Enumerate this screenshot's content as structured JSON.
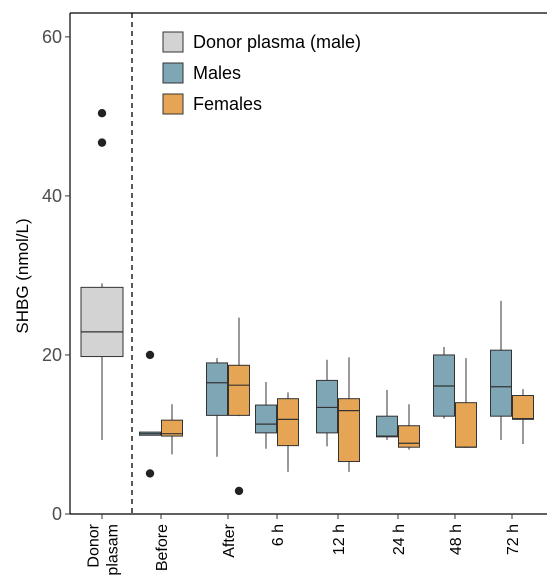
{
  "chart_data": {
    "type": "box",
    "ylabel": "SHBG (nmol/L)",
    "ylim": [
      0,
      63
    ],
    "yticks": [
      0,
      20,
      40,
      60
    ],
    "categories": [
      "Donor\nplasam",
      "Before",
      "After",
      "6 h",
      "12 h",
      "24 h",
      "48 h",
      "72 h"
    ],
    "colors": {
      "donor": "#d3d3d3",
      "males": "#7fa6b5",
      "females": "#e6a555"
    },
    "legend": {
      "position": "top-left",
      "entries": [
        {
          "label": "Donor plasma (male)",
          "color": "#d3d3d3"
        },
        {
          "label": "Males",
          "color": "#7fa6b5"
        },
        {
          "label": "Females",
          "color": "#e6a555"
        }
      ]
    },
    "series": [
      {
        "name": "Donor plasma (male)",
        "group": "donor",
        "boxes": [
          {
            "category": 0,
            "whisker_low": 9.3,
            "q1": 19.8,
            "median": 22.9,
            "q3": 28.5,
            "whisker_high": 29.0,
            "outliers": [
              46.7,
              50.4
            ]
          }
        ]
      },
      {
        "name": "Males",
        "group": "males",
        "boxes": [
          {
            "category": 1,
            "whisker_low": 9.9,
            "q1": 9.9,
            "median": 10.1,
            "q3": 10.3,
            "whisker_high": 10.3,
            "outliers": [
              5.1,
              20.0
            ]
          },
          {
            "category": 2,
            "whisker_low": 7.2,
            "q1": 12.4,
            "median": 16.5,
            "q3": 19.0,
            "whisker_high": 19.6,
            "outliers": []
          },
          {
            "category": 3,
            "whisker_low": 8.2,
            "q1": 10.2,
            "median": 11.3,
            "q3": 13.7,
            "whisker_high": 16.6,
            "outliers": []
          },
          {
            "category": 4,
            "whisker_low": 8.5,
            "q1": 10.2,
            "median": 13.4,
            "q3": 16.8,
            "whisker_high": 19.4,
            "outliers": []
          },
          {
            "category": 5,
            "whisker_low": 9.3,
            "q1": 9.7,
            "median": 9.8,
            "q3": 12.3,
            "whisker_high": 15.6,
            "outliers": []
          },
          {
            "category": 6,
            "whisker_low": 12.0,
            "q1": 12.3,
            "median": 16.1,
            "q3": 20.0,
            "whisker_high": 21.0,
            "outliers": []
          },
          {
            "category": 7,
            "whisker_low": 9.3,
            "q1": 12.3,
            "median": 16.0,
            "q3": 20.6,
            "whisker_high": 26.8,
            "outliers": []
          }
        ]
      },
      {
        "name": "Females",
        "group": "females",
        "boxes": [
          {
            "category": 1,
            "whisker_low": 7.5,
            "q1": 9.8,
            "median": 10.1,
            "q3": 11.8,
            "whisker_high": 13.8,
            "outliers": []
          },
          {
            "category": 2,
            "whisker_low": 12.3,
            "q1": 12.4,
            "median": 16.2,
            "q3": 18.7,
            "whisker_high": 24.7,
            "outliers": [
              2.9
            ]
          },
          {
            "category": 3,
            "whisker_low": 5.3,
            "q1": 8.6,
            "median": 11.9,
            "q3": 14.5,
            "whisker_high": 15.3,
            "outliers": []
          },
          {
            "category": 4,
            "whisker_low": 5.3,
            "q1": 6.6,
            "median": 13.0,
            "q3": 14.5,
            "whisker_high": 19.7,
            "outliers": []
          },
          {
            "category": 5,
            "whisker_low": 8.1,
            "q1": 8.4,
            "median": 8.9,
            "q3": 11.1,
            "whisker_high": 13.8,
            "outliers": []
          },
          {
            "category": 6,
            "whisker_low": 8.3,
            "q1": 8.4,
            "median": 8.4,
            "q3": 14.0,
            "whisker_high": 19.6,
            "outliers": []
          },
          {
            "category": 7,
            "whisker_low": 8.8,
            "q1": 11.9,
            "median": 12.0,
            "q3": 14.9,
            "whisker_high": 15.7,
            "outliers": []
          }
        ]
      }
    ]
  }
}
